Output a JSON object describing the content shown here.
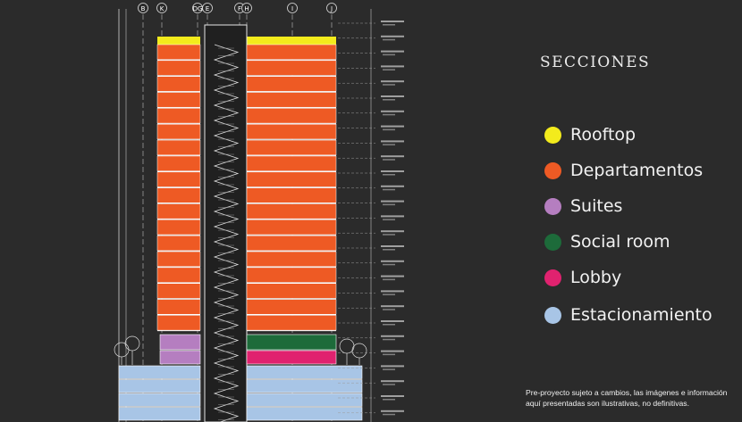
{
  "grid_axes": [
    "B",
    "K",
    "DG",
    "E",
    "F",
    "H",
    "I",
    "J"
  ],
  "legend": {
    "title": "SECCIONES",
    "items": [
      {
        "label": "Rooftop",
        "color": "#f3eb1c",
        "icon": "yellow-dot"
      },
      {
        "label": "Departamentos",
        "color": "#ee5a24",
        "icon": "orange-dot"
      },
      {
        "label": "Suites",
        "color": "#b57ec0",
        "icon": "purple-dot"
      },
      {
        "label": "Social room",
        "color": "#1d6b3a",
        "icon": "green-dot"
      },
      {
        "label": "Lobby",
        "color": "#e0226f",
        "icon": "pink-dot"
      },
      {
        "label": "Estacionamiento",
        "color": "#a8c5e6",
        "icon": "light-blue-dot"
      }
    ]
  },
  "disclaimer": "Pre-proyecto sujeto a cambios, las imágenes e información aquí presentadas son ilustrativas, no definitivas."
}
